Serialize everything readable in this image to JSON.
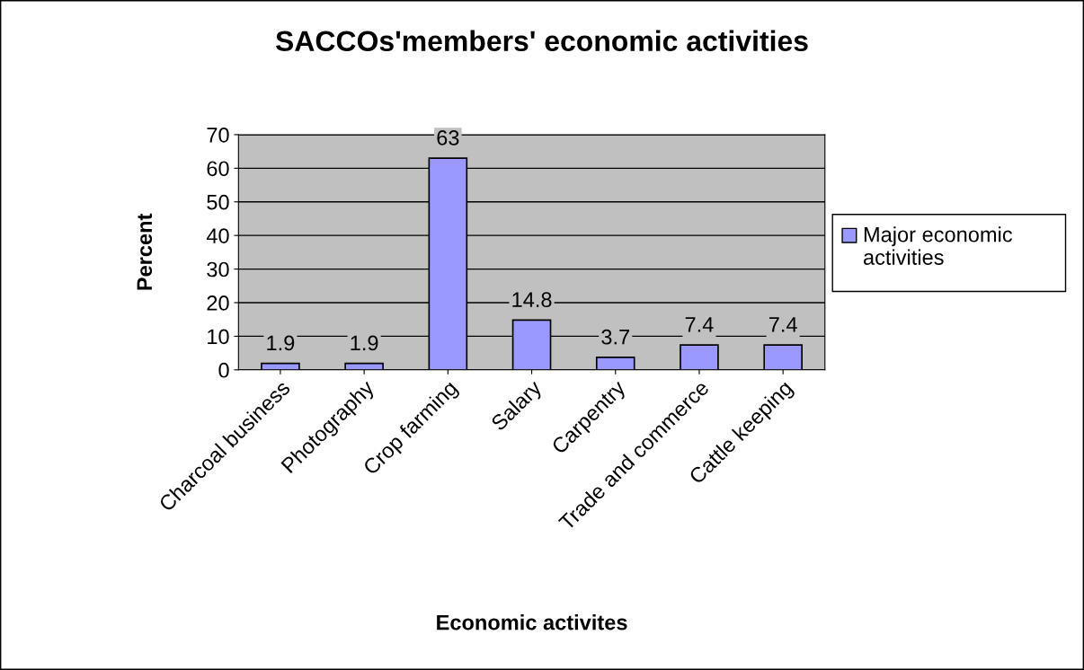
{
  "chart_data": {
    "type": "bar",
    "title": "SACCOs'members' economic activities",
    "xlabel": "Economic activites",
    "ylabel": "Percent",
    "categories": [
      "Charcoal business",
      "Photography",
      "Crop farming",
      "Salary",
      "Carpentry",
      "Trade and commerce",
      "Cattle keeping"
    ],
    "series": [
      {
        "name": "Major economic activities",
        "color": "#9999ff",
        "values": [
          1.9,
          1.9,
          63,
          14.8,
          3.7,
          7.4,
          7.4
        ]
      }
    ],
    "ylim": [
      0,
      70
    ],
    "yticks": [
      0,
      10,
      20,
      30,
      40,
      50,
      60,
      70
    ],
    "grid": "y",
    "legend": "right",
    "data_labels": true
  }
}
